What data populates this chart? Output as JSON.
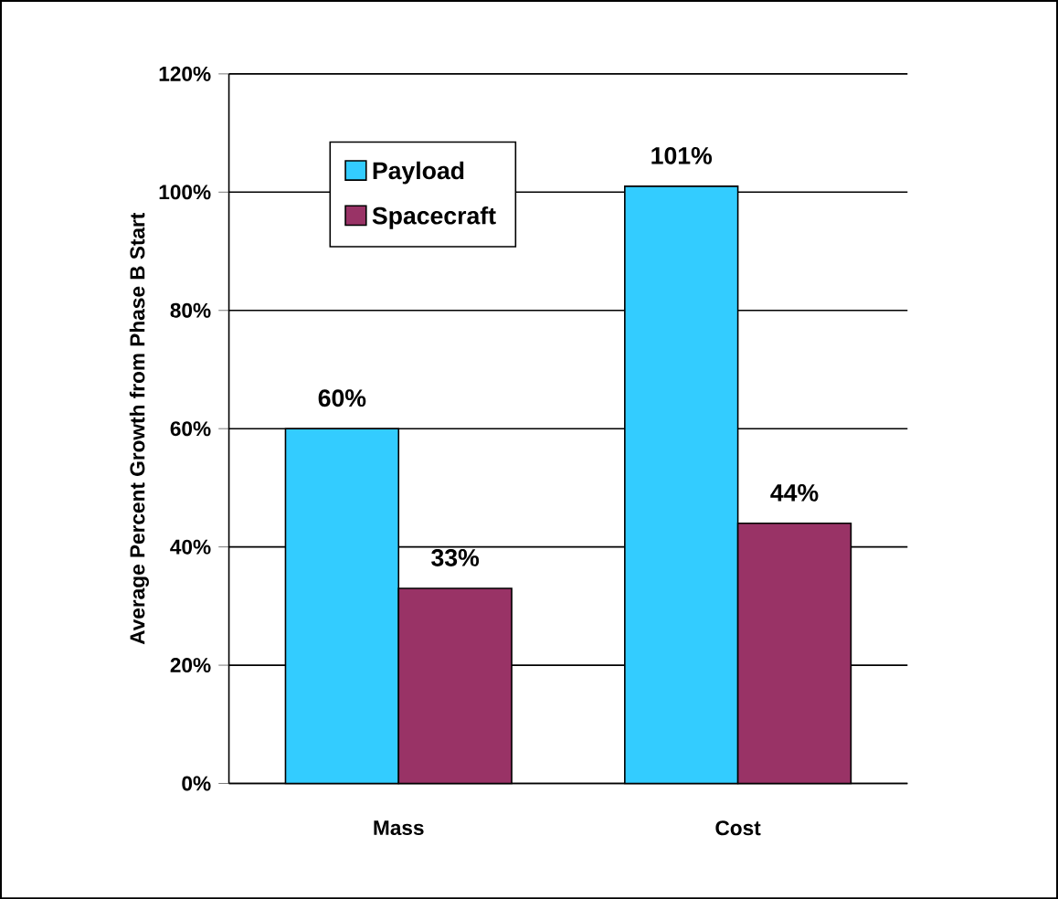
{
  "chart_data": {
    "type": "bar",
    "ylabel": "Average Percent Growth from Phase B Start",
    "categories": [
      "Mass",
      "Cost"
    ],
    "series": [
      {
        "name": "Payload",
        "color": "#33ccff",
        "values": [
          60,
          101
        ],
        "value_labels": [
          "60%",
          "101%"
        ]
      },
      {
        "name": "Spacecraft",
        "color": "#993366",
        "values": [
          33,
          44
        ],
        "value_labels": [
          "33%",
          "44%"
        ]
      }
    ],
    "ylim": [
      0,
      120
    ],
    "yticks": [
      {
        "value": 0,
        "label": "0%"
      },
      {
        "value": 20,
        "label": "20%"
      },
      {
        "value": 40,
        "label": "40%"
      },
      {
        "value": 60,
        "label": "60%"
      },
      {
        "value": 80,
        "label": "80%"
      },
      {
        "value": 100,
        "label": "100%"
      },
      {
        "value": 120,
        "label": "120%"
      }
    ],
    "grid": "y",
    "legend": "top left"
  }
}
